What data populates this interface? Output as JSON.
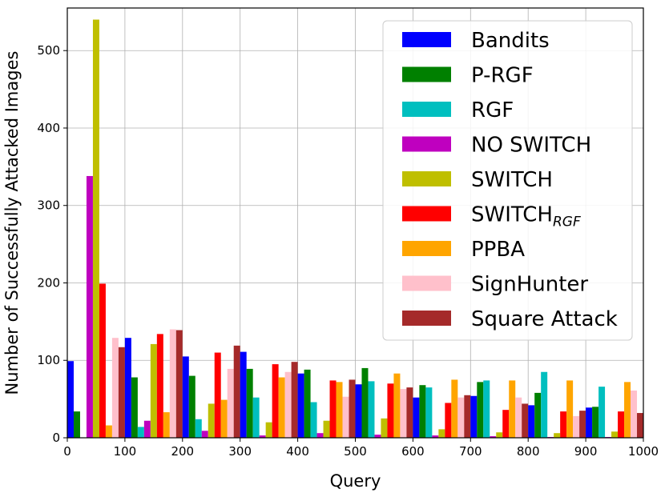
{
  "chart_data": {
    "type": "bar",
    "xlabel": "Query",
    "ylabel": "Number of Successfully Attacked Images",
    "xlim": [
      0,
      1000
    ],
    "ylim": [
      0,
      555
    ],
    "x_ticks": [
      0,
      100,
      200,
      300,
      400,
      500,
      600,
      700,
      800,
      900,
      1000
    ],
    "y_ticks": [
      0,
      100,
      200,
      300,
      400,
      500
    ],
    "grid": true,
    "legend_position": "top-right",
    "bin_centers": [
      50,
      150,
      250,
      350,
      450,
      550,
      650,
      750,
      850,
      950
    ],
    "series": [
      {
        "name": "Bandits",
        "color": "#0000ff",
        "values": [
          99,
          129,
          105,
          111,
          83,
          69,
          52,
          54,
          42,
          39
        ]
      },
      {
        "name": "P-RGF",
        "color": "#008000",
        "values": [
          34,
          78,
          80,
          89,
          88,
          90,
          68,
          72,
          58,
          40
        ]
      },
      {
        "name": "RGF",
        "color": "#00bfbf",
        "values": [
          0,
          14,
          24,
          52,
          46,
          73,
          65,
          74,
          85,
          66
        ]
      },
      {
        "name": "NO SWITCH",
        "color": "#bf00bf",
        "values": [
          338,
          22,
          9,
          3,
          6,
          4,
          3,
          2,
          1,
          1
        ]
      },
      {
        "name": "SWITCH",
        "color": "#bfbf00",
        "values": [
          540,
          121,
          44,
          20,
          22,
          25,
          11,
          7,
          6,
          8
        ]
      },
      {
        "name": "SWITCH",
        "name_subscript": "RGF",
        "color": "#ff0000",
        "values": [
          199,
          134,
          110,
          95,
          74,
          70,
          45,
          36,
          34,
          34
        ]
      },
      {
        "name": "PPBA",
        "color": "#ffa500",
        "values": [
          16,
          33,
          49,
          78,
          72,
          83,
          75,
          74,
          74,
          72
        ]
      },
      {
        "name": "SignHunter",
        "color": "#ffc0cb",
        "values": [
          129,
          140,
          89,
          85,
          53,
          63,
          52,
          52,
          28,
          61
        ]
      },
      {
        "name": "Square Attack",
        "color": "#a52a2a",
        "values": [
          117,
          139,
          119,
          98,
          75,
          65,
          55,
          44,
          35,
          32
        ]
      }
    ]
  }
}
